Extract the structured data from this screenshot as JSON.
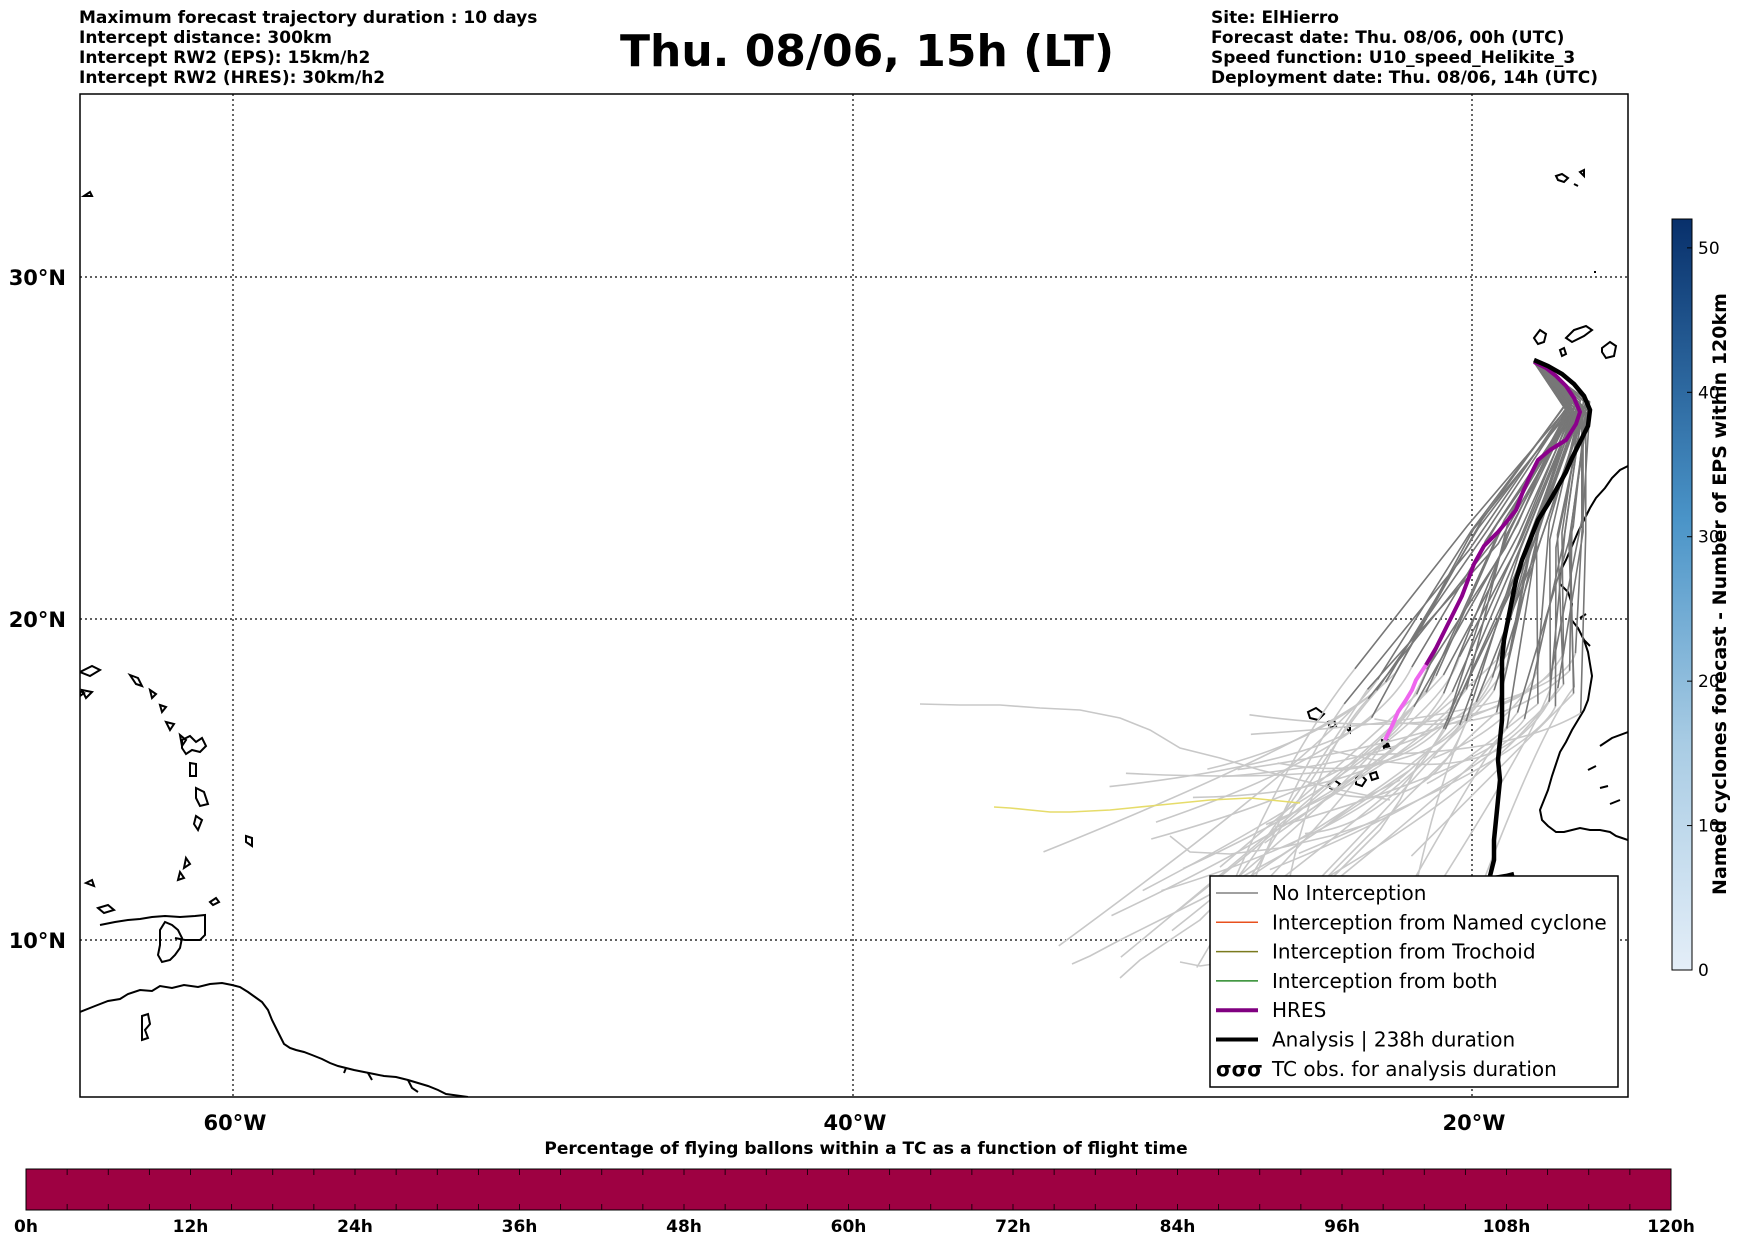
{
  "header": {
    "left_lines": [
      "Maximum forecast trajectory duration : 10 days",
      "Intercept distance: 300km",
      "Intercept RW2 (EPS):  15km/h2",
      "Intercept RW2 (HRES): 30km/h2"
    ],
    "title": "Thu. 08/06, 15h (LT)",
    "right_lines": [
      "Site: ElHierro",
      "Forecast date: Thu. 08/06, 00h (UTC)",
      "Speed function: U10_speed_Helikite_3",
      "Deployment date: Thu. 08/06, 14h (UTC)"
    ]
  },
  "map": {
    "lat_labels": [
      "30°N",
      "20°N",
      "10°N"
    ],
    "lon_labels": [
      "60°W",
      "40°W",
      "20°W"
    ],
    "lat_values": [
      30,
      20,
      10
    ],
    "lon_values": [
      -60,
      -40,
      -20
    ],
    "extent": {
      "lon_min": -65,
      "lon_max": -15,
      "lat_min": 5.4,
      "lat_max": 35.3
    },
    "site_label": "ElHierro"
  },
  "legend": {
    "items": [
      {
        "label": "No Interception",
        "color": "#808080",
        "style": "thin"
      },
      {
        "label": "Interception from Named cyclone",
        "color": "#e8501e",
        "style": "thin"
      },
      {
        "label": "Interception from Trochoid",
        "color": "#7a7a1e",
        "style": "thin"
      },
      {
        "label": "Interception from both",
        "color": "#2a8a2a",
        "style": "thin"
      },
      {
        "label": "HRES",
        "color": "#800080",
        "style": "thick"
      },
      {
        "label": "Analysis | 238h duration",
        "color": "#000000",
        "style": "thick"
      },
      {
        "label": "TC obs. for analysis duration",
        "color": "#000000",
        "style": "marker"
      }
    ],
    "marker_glyphs": "σσσ"
  },
  "colorbar": {
    "label": "Named cyclones forecast - Number of EPS within 120km",
    "ticks": [
      "0",
      "10",
      "20",
      "30",
      "40",
      "50"
    ],
    "min": 0,
    "max": 52,
    "color_low": "#e4eef8",
    "color_high": "#08306b"
  },
  "percentage_bar": {
    "title": "Percentage of flying ballons within a TC as a function of flight time",
    "ticks": [
      "0h",
      "12h",
      "24h",
      "36h",
      "48h",
      "60h",
      "72h",
      "84h",
      "96h",
      "108h",
      "120h"
    ],
    "fill_color": "#9e0142",
    "percent_within_tc": 0
  },
  "colors": {
    "eps_tracks": "#777777",
    "eps_tracks_late": "#c8c8c8",
    "hres": "#8b008b",
    "hres_late": "#ee66ee",
    "analysis": "#000000",
    "yellow_track": "#e6dc6a"
  }
}
